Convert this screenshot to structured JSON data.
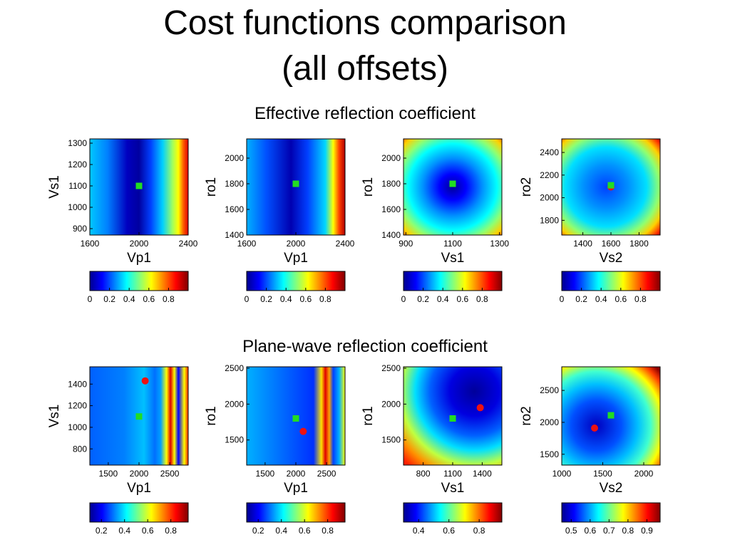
{
  "title_line1": "Cost functions comparison",
  "title_line2": "(all offsets)",
  "colormap": [
    "#00008f",
    "#0000ff",
    "#0080ff",
    "#00ffff",
    "#80ff80",
    "#ffff00",
    "#ff8000",
    "#ff0000",
    "#800000"
  ],
  "marker_colors": {
    "square": "#22dd22",
    "circle": "#ee1111"
  },
  "sections": [
    {
      "subtitle": "Effective reflection coefficient"
    },
    {
      "subtitle": "Plane-wave reflection coefficient"
    }
  ],
  "chart_data": [
    {
      "type": "heatmap",
      "section": 0,
      "xlabel": "Vp1",
      "ylabel": "Vs1",
      "xlim": [
        1600,
        2400
      ],
      "ylim": [
        870,
        1320
      ],
      "xticks": [
        1600,
        2000,
        2400
      ],
      "yticks": [
        900,
        1000,
        1100,
        1200,
        1300
      ],
      "square": [
        2000,
        1100
      ],
      "circle": null,
      "colorbar": {
        "range": [
          0,
          1
        ],
        "ticks": [
          "0",
          "0.2",
          "0.4",
          "0.6",
          "0.8"
        ]
      }
    },
    {
      "type": "heatmap",
      "section": 0,
      "xlabel": "Vp1",
      "ylabel": "ro1",
      "xlim": [
        1600,
        2400
      ],
      "ylim": [
        1400,
        2150
      ],
      "xticks": [
        1600,
        2000,
        2400
      ],
      "yticks": [
        1400,
        1600,
        1800,
        2000
      ],
      "square": [
        2000,
        1800
      ],
      "circle": null,
      "colorbar": {
        "range": [
          0,
          1
        ],
        "ticks": [
          "0",
          "0.2",
          "0.4",
          "0.6",
          "0.8"
        ]
      }
    },
    {
      "type": "heatmap",
      "section": 0,
      "xlabel": "Vs1",
      "ylabel": "ro1",
      "xlim": [
        890,
        1310
      ],
      "ylim": [
        1400,
        2150
      ],
      "xticks": [
        900,
        1100,
        1300
      ],
      "yticks": [
        1400,
        1600,
        1800,
        2000
      ],
      "square": [
        1100,
        1800
      ],
      "circle": null,
      "colorbar": {
        "range": [
          0,
          1
        ],
        "ticks": [
          "0",
          "0.2",
          "0.4",
          "0.6",
          "0.8"
        ]
      }
    },
    {
      "type": "heatmap",
      "section": 0,
      "xlabel": "Vs2",
      "ylabel": "ro2",
      "xlim": [
        1250,
        1950
      ],
      "ylim": [
        1670,
        2520
      ],
      "xticks": [
        1400,
        1600,
        1800
      ],
      "yticks": [
        1800,
        2000,
        2200,
        2400
      ],
      "square": [
        1600,
        2110
      ],
      "circle": [
        1600,
        2095
      ],
      "colorbar": {
        "range": [
          0,
          1
        ],
        "ticks": [
          "0",
          "0.2",
          "0.4",
          "0.6",
          "0.8"
        ]
      }
    },
    {
      "type": "heatmap",
      "section": 1,
      "xlabel": "Vp1",
      "ylabel": "Vs1",
      "xlim": [
        1200,
        2800
      ],
      "ylim": [
        650,
        1560
      ],
      "xticks": [
        1500,
        2000,
        2500
      ],
      "yticks": [
        800,
        1000,
        1200,
        1400
      ],
      "square": [
        2000,
        1100
      ],
      "circle": [
        2100,
        1430
      ],
      "colorbar": {
        "range": [
          0.1,
          0.95
        ],
        "ticks": [
          "0.2",
          "0.4",
          "0.6",
          "0.8"
        ]
      }
    },
    {
      "type": "heatmap",
      "section": 1,
      "xlabel": "Vp1",
      "ylabel": "ro1",
      "xlim": [
        1200,
        2800
      ],
      "ylim": [
        1150,
        2520
      ],
      "xticks": [
        1500,
        2000,
        2500
      ],
      "yticks": [
        1500,
        2000,
        2500
      ],
      "square": [
        2000,
        1800
      ],
      "circle": [
        2120,
        1620
      ],
      "colorbar": {
        "range": [
          0.1,
          0.95
        ],
        "ticks": [
          "0.2",
          "0.4",
          "0.6",
          "0.8"
        ]
      }
    },
    {
      "type": "heatmap",
      "section": 1,
      "xlabel": "Vs1",
      "ylabel": "ro1",
      "xlim": [
        600,
        1600
      ],
      "ylim": [
        1150,
        2520
      ],
      "xticks": [
        800,
        1100,
        1400
      ],
      "yticks": [
        1500,
        2000,
        2500
      ],
      "square": [
        1100,
        1800
      ],
      "circle": [
        1380,
        1950
      ],
      "colorbar": {
        "range": [
          0.3,
          0.95
        ],
        "ticks": [
          "0.4",
          "0.6",
          "0.8"
        ]
      }
    },
    {
      "type": "heatmap",
      "section": 1,
      "xlabel": "Vs2",
      "ylabel": "ro2",
      "xlim": [
        1000,
        2200
      ],
      "ylim": [
        1330,
        2870
      ],
      "xticks": [
        1000,
        1500,
        2000
      ],
      "yticks": [
        1500,
        2000,
        2500
      ],
      "square": [
        1600,
        2110
      ],
      "circle": [
        1400,
        1910
      ],
      "colorbar": {
        "range": [
          0.45,
          0.97
        ],
        "ticks": [
          "0.5",
          "0.6",
          "0.7",
          "0.8",
          "0.9"
        ]
      }
    }
  ]
}
